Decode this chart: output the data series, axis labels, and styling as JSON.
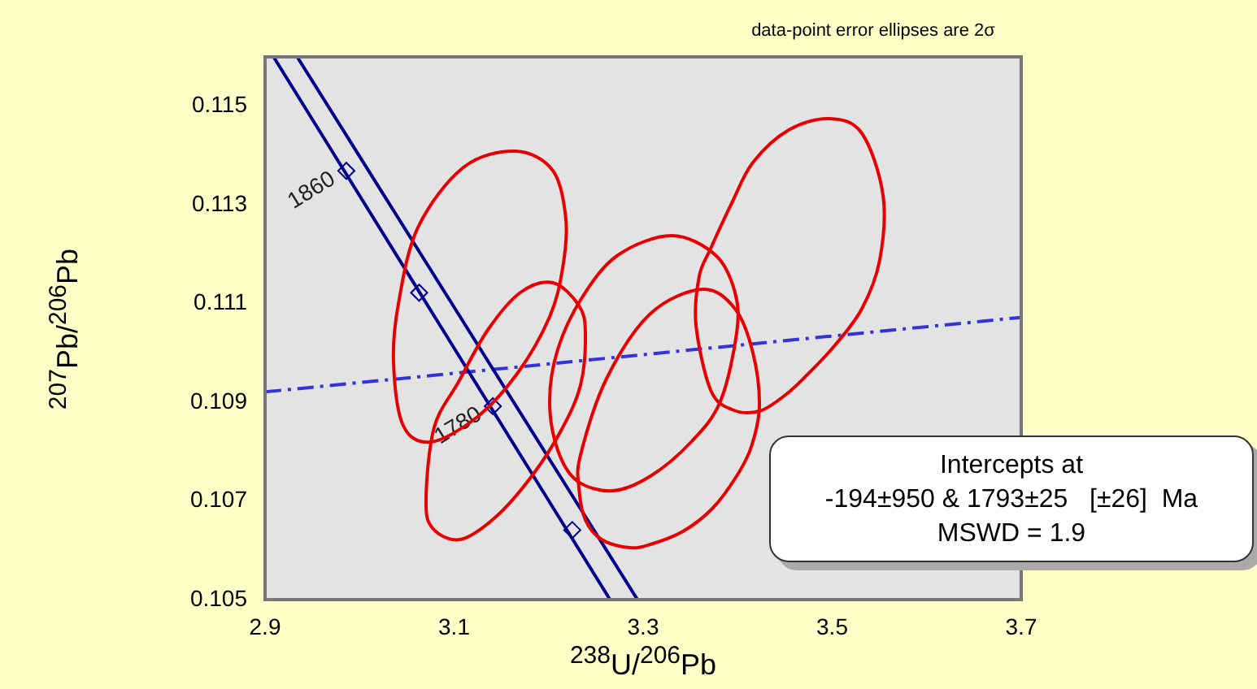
{
  "chart_data": {
    "type": "line",
    "xlabel": "$^{238}$U/$^{206}$Pb",
    "ylabel": "$^{207}$Pb/$^{206}$Pb",
    "xlim": [
      2.9,
      3.7
    ],
    "xticks": [
      2.9,
      3.1,
      3.3,
      3.5,
      3.7
    ],
    "ylim": [
      0.105,
      0.116
    ],
    "yticks": [
      0.105,
      0.107,
      0.109,
      0.111,
      0.113,
      0.115
    ],
    "grid": false,
    "legend": false,
    "marker": "none",
    "annotations": [
      "data-point error ellipses are 2σ",
      "Intercepts at\n-194±950 & 1793±25   [±26]  Ma\nMSWD = 1.9",
      {
        "text": "1860",
        "x": 2.986,
        "y": 0.11369
      },
      {
        "text": "1780",
        "x": 3.141,
        "y": 0.10892
      }
    ],
    "series": [
      {
        "color": "#00008b",
        "x": [
          2.909,
          3.087,
          3.265
        ],
        "values": [
          0.116,
          0.1105,
          0.105
        ]
      },
      {
        "color": "#00008b",
        "x": [
          2.934,
          3.114,
          3.294
        ],
        "values": [
          0.116,
          0.1105,
          0.105
        ]
      },
      {
        "type": "scatter",
        "color": "#00008b",
        "marker": "diamond",
        "x": [
          2.986,
          3.063,
          3.141,
          3.225
        ],
        "values": [
          0.11369,
          0.11122,
          0.10892,
          0.10641
        ]
      },
      {
        "color": "#3333dd",
        "line_style": "dashed",
        "x": [
          2.9,
          3.7
        ],
        "values": [
          0.10921,
          0.11072
        ]
      }
    ]
  }
}
